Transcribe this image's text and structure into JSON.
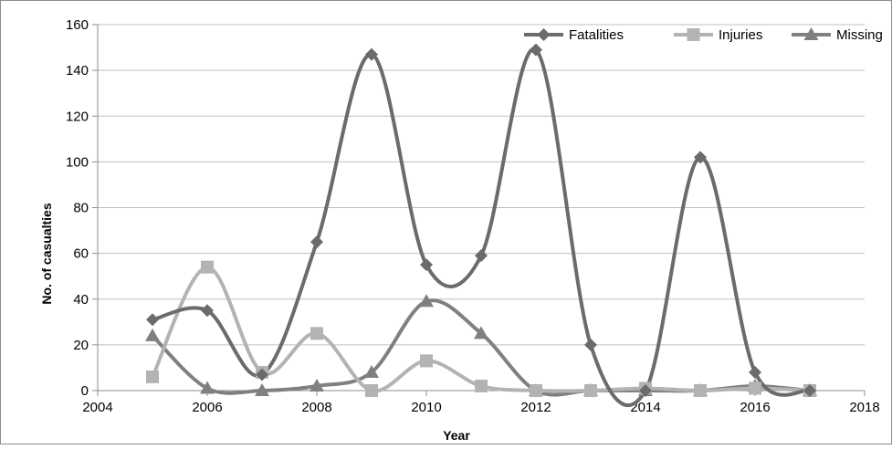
{
  "chart_data": {
    "type": "line",
    "title": "",
    "xlabel": "Year",
    "ylabel": "No. of casualties",
    "xlim": [
      2004,
      2018
    ],
    "ylim": [
      0,
      160
    ],
    "xticks": [
      "2004",
      "2006",
      "2008",
      "2010",
      "2012",
      "2014",
      "2016",
      "2018"
    ],
    "yticks": [
      "0",
      "20",
      "40",
      "60",
      "80",
      "100",
      "120",
      "140",
      "160"
    ],
    "grid": "horizontal",
    "smooth": true,
    "legend_position": "top-right",
    "x": [
      2005,
      2006,
      2007,
      2008,
      2009,
      2010,
      2011,
      2012,
      2013,
      2014,
      2015,
      2016,
      2017
    ],
    "series": [
      {
        "name": "Fatalities",
        "marker": "diamond",
        "color": "#6b6b6b",
        "values": [
          31,
          35,
          7,
          65,
          147,
          55,
          59,
          149,
          20,
          0,
          102,
          8,
          0
        ]
      },
      {
        "name": "Injuries",
        "marker": "square",
        "color": "#b3b3b3",
        "values": [
          6,
          54,
          8,
          25,
          0,
          13,
          2,
          0,
          0,
          1,
          0,
          1,
          0
        ]
      },
      {
        "name": "Missing",
        "marker": "triangle",
        "color": "#808080",
        "values": [
          24,
          1,
          0,
          2,
          8,
          39,
          25,
          0,
          0,
          0,
          0,
          2,
          0
        ]
      }
    ]
  }
}
